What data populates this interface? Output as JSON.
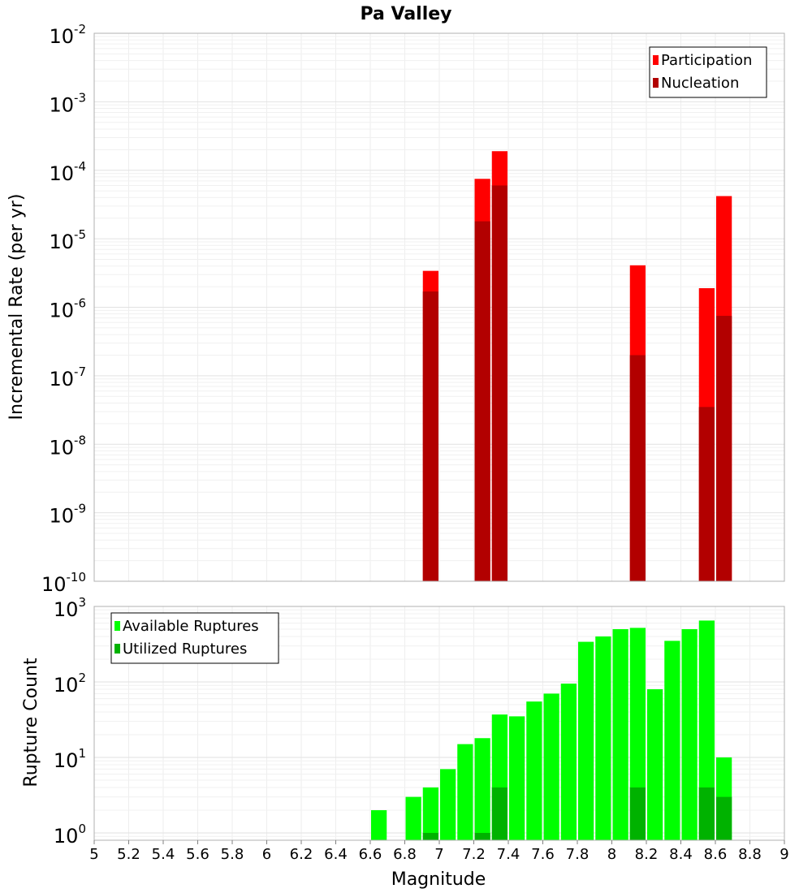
{
  "chart_data": [
    {
      "type": "bar",
      "title": "Pa Valley",
      "xlabel": "Magnitude",
      "ylabel": "Incremental Rate (per yr)",
      "yscale": "log",
      "ylim": [
        1e-10,
        0.01
      ],
      "xlim": [
        5,
        9
      ],
      "bar_width": 0.1,
      "y_ticks": [
        {
          "base": "10",
          "exp": "-2",
          "value": 0.01
        },
        {
          "base": "10",
          "exp": "-3",
          "value": 0.001
        },
        {
          "base": "10",
          "exp": "-4",
          "value": 0.0001
        },
        {
          "base": "10",
          "exp": "-5",
          "value": 1e-05
        },
        {
          "base": "10",
          "exp": "-6",
          "value": 1e-06
        },
        {
          "base": "10",
          "exp": "-7",
          "value": 1e-07
        },
        {
          "base": "10",
          "exp": "-8",
          "value": 1e-08
        },
        {
          "base": "10",
          "exp": "-9",
          "value": 1e-09
        },
        {
          "base": "10",
          "exp": "-10",
          "value": 1e-10
        }
      ],
      "legend": {
        "placement": "top-right",
        "entries": [
          {
            "label": "Participation",
            "color": "#ff0000"
          },
          {
            "label": "Nucleation",
            "color": "#b20000"
          }
        ]
      },
      "series": [
        {
          "name": "Participation",
          "color": "#ff0000",
          "x": [
            6.95,
            7.25,
            7.35,
            8.15,
            8.55,
            8.65
          ],
          "values": [
            3.4e-06,
            7.5e-05,
            0.00019,
            4.1e-06,
            1.9e-06,
            4.2e-05
          ]
        },
        {
          "name": "Nucleation",
          "color": "#b20000",
          "x": [
            6.95,
            7.25,
            7.35,
            8.15,
            8.55,
            8.65
          ],
          "values": [
            1.7e-06,
            1.8e-05,
            6e-05,
            2e-07,
            3.5e-08,
            7.5e-07
          ]
        }
      ]
    },
    {
      "type": "bar",
      "title": "",
      "xlabel": "Magnitude",
      "ylabel": "Rupture Count",
      "yscale": "log",
      "ylim": [
        0.8,
        1000
      ],
      "xlim": [
        5,
        9
      ],
      "bar_width": 0.1,
      "y_ticks": [
        {
          "base": "10",
          "exp": "3",
          "value": 1000
        },
        {
          "base": "10",
          "exp": "2",
          "value": 100
        },
        {
          "base": "10",
          "exp": "1",
          "value": 10
        },
        {
          "base": "10",
          "exp": "0",
          "value": 1
        }
      ],
      "x_ticks": [
        "5",
        "5.2",
        "5.4",
        "5.6",
        "5.8",
        "6",
        "6.2",
        "6.4",
        "6.6",
        "6.8",
        "7",
        "7.2",
        "7.4",
        "7.6",
        "7.8",
        "8",
        "8.2",
        "8.4",
        "8.6",
        "8.8",
        "9"
      ],
      "legend": {
        "placement": "top-left",
        "entries": [
          {
            "label": "Available Ruptures",
            "color": "#00ff00"
          },
          {
            "label": "Utilized Ruptures",
            "color": "#00b200"
          }
        ]
      },
      "series": [
        {
          "name": "Available Ruptures",
          "color": "#00ff00",
          "x": [
            6.65,
            6.85,
            6.95,
            7.05,
            7.15,
            7.25,
            7.35,
            7.45,
            7.55,
            7.65,
            7.75,
            7.85,
            7.95,
            8.05,
            8.15,
            8.25,
            8.35,
            8.45,
            8.55,
            8.65
          ],
          "values": [
            2,
            3,
            4,
            7,
            15,
            18,
            37,
            35,
            55,
            70,
            95,
            340,
            400,
            500,
            520,
            80,
            350,
            500,
            650,
            10
          ]
        },
        {
          "name": "Utilized Ruptures",
          "color": "#00b200",
          "x": [
            6.95,
            7.25,
            7.35,
            8.15,
            8.55,
            8.65
          ],
          "values": [
            1,
            1,
            4,
            4,
            4,
            3
          ]
        }
      ]
    }
  ]
}
